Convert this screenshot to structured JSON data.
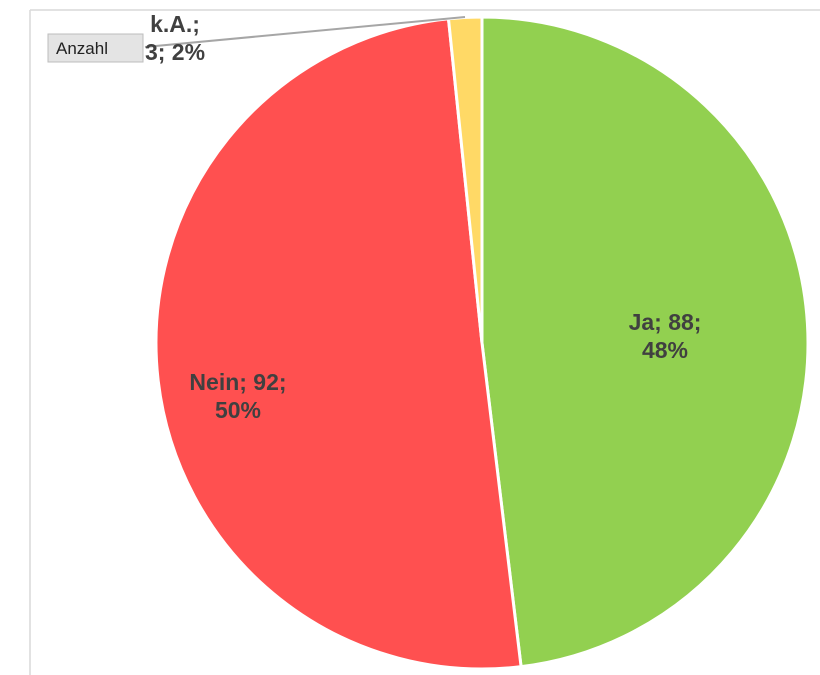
{
  "chart_data": {
    "type": "pie",
    "categories": [
      "Ja",
      "Nein",
      "k.A."
    ],
    "values": [
      88,
      92,
      3
    ],
    "value_labels": [
      "Ja; 88;\n48%",
      "Nein; 92;\n50%",
      "k.A.;\n3; 2%"
    ],
    "colors": [
      "#92d050",
      "#ff5050",
      "#ffd966"
    ]
  },
  "field_button": "Anzahl"
}
